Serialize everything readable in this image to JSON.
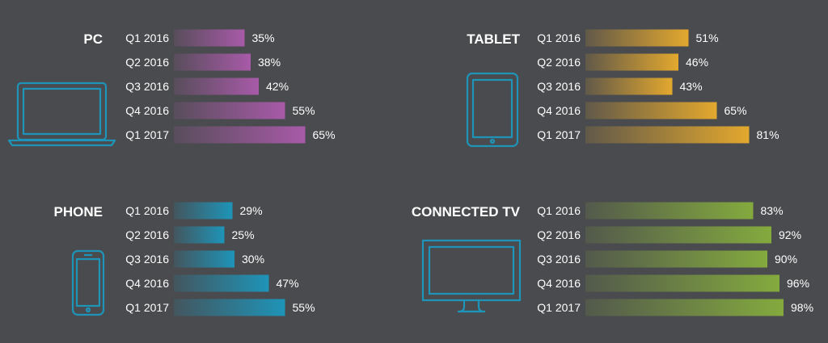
{
  "chart_data": [
    {
      "type": "bar",
      "title": "PC",
      "icon": "laptop-icon",
      "color": "#a85aa8",
      "categories": [
        "Q1 2016",
        "Q2 2016",
        "Q3 2016",
        "Q4 2016",
        "Q1 2017"
      ],
      "values": [
        35,
        38,
        42,
        55,
        65
      ],
      "value_labels": [
        "35%",
        "38%",
        "42%",
        "55%",
        "65%"
      ],
      "xlim": [
        0,
        100
      ]
    },
    {
      "type": "bar",
      "title": "TABLET",
      "icon": "tablet-icon",
      "color": "#e3a82e",
      "categories": [
        "Q1 2016",
        "Q2 2016",
        "Q3 2016",
        "Q4 2016",
        "Q1 2017"
      ],
      "values": [
        51,
        46,
        43,
        65,
        81
      ],
      "value_labels": [
        "51%",
        "46%",
        "43%",
        "65%",
        "81%"
      ],
      "xlim": [
        0,
        100
      ]
    },
    {
      "type": "bar",
      "title": "PHONE",
      "icon": "phone-icon",
      "color": "#1e94b8",
      "categories": [
        "Q1 2016",
        "Q2 2016",
        "Q3 2016",
        "Q4 2016",
        "Q1 2017"
      ],
      "values": [
        29,
        25,
        30,
        47,
        55
      ],
      "value_labels": [
        "29%",
        "25%",
        "30%",
        "47%",
        "55%"
      ],
      "xlim": [
        0,
        100
      ]
    },
    {
      "type": "bar",
      "title": "CONNECTED TV",
      "icon": "tv-icon",
      "color": "#84aa3e",
      "categories": [
        "Q1 2016",
        "Q2 2016",
        "Q3 2016",
        "Q4 2016",
        "Q1 2017"
      ],
      "values": [
        83,
        92,
        90,
        96,
        98
      ],
      "value_labels": [
        "83%",
        "92%",
        "90%",
        "96%",
        "98%"
      ],
      "xlim": [
        0,
        100
      ]
    }
  ],
  "colors": {
    "background": "#4a4b4e",
    "text": "#ffffff",
    "icon_stroke": "#1e94b8"
  }
}
